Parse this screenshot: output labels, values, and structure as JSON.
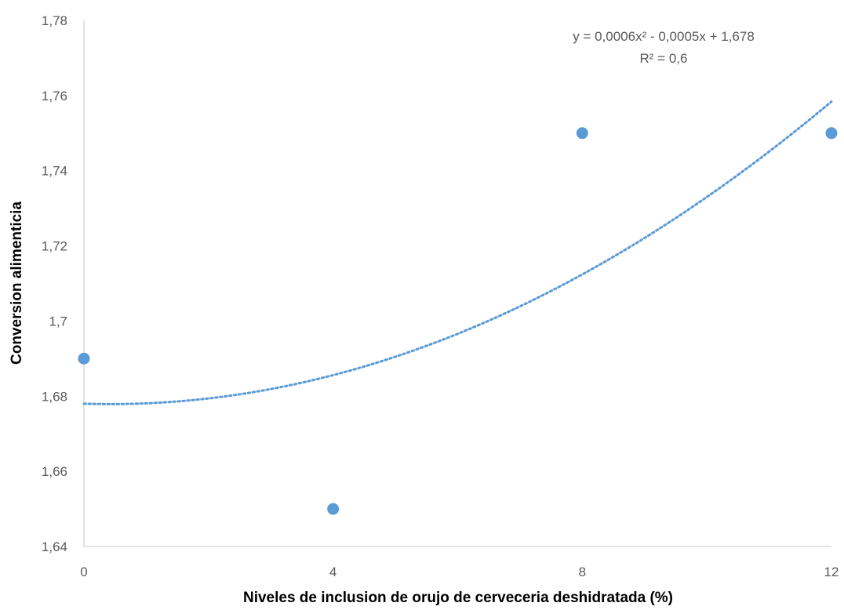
{
  "chart_data": {
    "type": "scatter",
    "xlabel": "Niveles de inclusion de orujo de cerveceria deshidratada (%)",
    "ylabel": "Conversion alimenticia",
    "xlim": [
      0,
      12
    ],
    "ylim": [
      1.64,
      1.78
    ],
    "x_ticks": [
      0,
      4,
      8,
      12
    ],
    "x_tick_labels": [
      "0",
      "4",
      "8",
      "12"
    ],
    "y_ticks": [
      1.64,
      1.66,
      1.68,
      1.7,
      1.72,
      1.74,
      1.76,
      1.78
    ],
    "y_tick_labels": [
      "1,64",
      "1,66",
      "1,68",
      "1,7",
      "1,72",
      "1,74",
      "1,76",
      "1,78"
    ],
    "grid": false,
    "series": [
      {
        "x": [
          0,
          4,
          8,
          12
        ],
        "y": [
          1.69,
          1.65,
          1.75,
          1.75
        ],
        "color": "#5B9BD5"
      }
    ],
    "trendline": {
      "type": "polynomial",
      "order": 2,
      "coefficients": [
        0.0006,
        -0.0005,
        1.678
      ],
      "style": "dotted",
      "color": "#5B9BD5",
      "equation_label": "y = 0,0006x² - 0,0005x + 1,678",
      "r2_label": "R² = 0,6"
    }
  }
}
